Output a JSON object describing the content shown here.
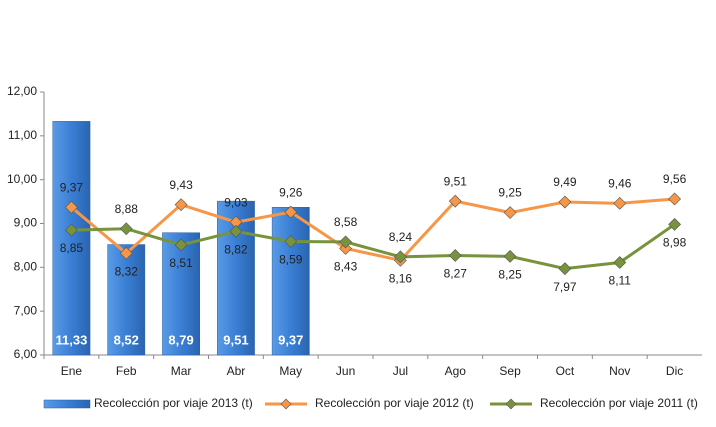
{
  "chart_data": {
    "type": "combo",
    "categories": [
      "Ene",
      "Feb",
      "Mar",
      "Abr",
      "May",
      "Jun",
      "Jul",
      "Ago",
      "Sep",
      "Oct",
      "Nov",
      "Dic"
    ],
    "ylim": [
      6,
      12
    ],
    "yticks": [
      {
        "value": 6,
        "label": "6,00"
      },
      {
        "value": 7,
        "label": "7,00"
      },
      {
        "value": 8,
        "label": "8,00"
      },
      {
        "value": 9,
        "label": "9,00"
      },
      {
        "value": 10,
        "label": "10,00"
      },
      {
        "value": 11,
        "label": "11,00"
      },
      {
        "value": 12,
        "label": "12,00"
      }
    ],
    "grid": false,
    "legend": "bottom",
    "series": [
      {
        "name": "Recolección por viaje 2013 (t)",
        "type": "bar",
        "color": "#3a7fd5",
        "values": [
          11.33,
          8.52,
          8.79,
          9.51,
          9.37,
          null,
          null,
          null,
          null,
          null,
          null,
          null
        ],
        "value_labels": [
          "11,33",
          "8,52",
          "8,79",
          "9,51",
          "9,37",
          null,
          null,
          null,
          null,
          null,
          null,
          null
        ]
      },
      {
        "name": "Recolección por viaje 2012 (t)",
        "type": "line",
        "color": "#f79646",
        "values": [
          9.37,
          8.32,
          9.43,
          9.03,
          9.26,
          8.43,
          8.16,
          9.51,
          9.25,
          9.49,
          9.46,
          9.56
        ],
        "value_labels": [
          "9,37",
          "8,32",
          "9,43",
          "9,03",
          "9,26",
          "8,43",
          "8,16",
          "9,51",
          "9,25",
          "9,49",
          "9,46",
          "9,56"
        ]
      },
      {
        "name": "Recolección por viaje 2011 (t)",
        "type": "line",
        "color": "#77933c",
        "values": [
          8.85,
          8.88,
          8.51,
          8.82,
          8.59,
          8.58,
          8.24,
          8.27,
          8.25,
          7.97,
          8.11,
          8.98
        ],
        "value_labels": [
          "8,85",
          "8,88",
          "8,51",
          "8,82",
          "8,59",
          "8,58",
          "8,24",
          "8,27",
          "8,25",
          "7,97",
          "8,11",
          "8,98"
        ]
      }
    ]
  }
}
